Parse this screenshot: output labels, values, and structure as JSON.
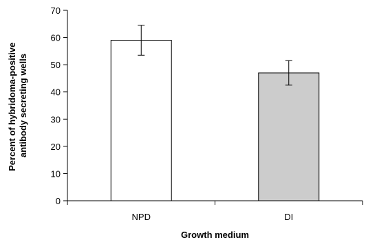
{
  "chart_data": {
    "type": "bar",
    "categories": [
      "NPD",
      "DI"
    ],
    "values": [
      59,
      47
    ],
    "error": [
      5.5,
      4.5
    ],
    "colors": [
      "#ffffff",
      "#cccccc"
    ],
    "xlabel": "Growth medium",
    "ylabel_lines": [
      "Percent of hybridoma-positive",
      "antibody secreting wells"
    ],
    "ylim": [
      0,
      70
    ],
    "yticks": [
      0,
      10,
      20,
      30,
      40,
      50,
      60,
      70
    ],
    "grid": false
  }
}
